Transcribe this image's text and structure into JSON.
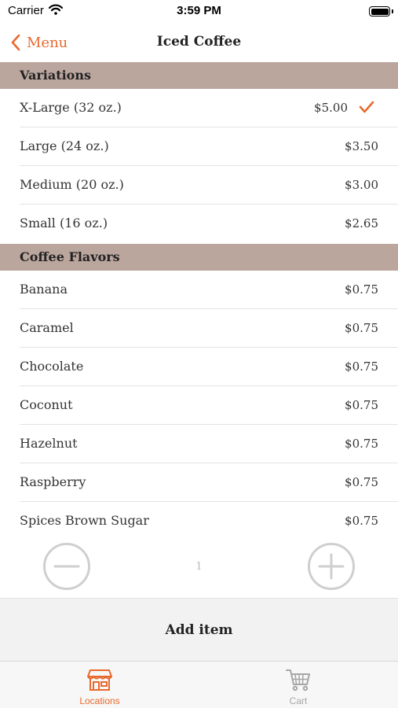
{
  "status_bar": {
    "carrier": "Carrier",
    "time": "3:59 PM"
  },
  "nav": {
    "back_label": "Menu",
    "title": "Iced Coffee"
  },
  "sections": [
    {
      "title": "Variations",
      "items": [
        {
          "label": "X-Large (32 oz.)",
          "price": "$5.00",
          "selected": true
        },
        {
          "label": "Large (24 oz.)",
          "price": "$3.50",
          "selected": false
        },
        {
          "label": "Medium (20 oz.)",
          "price": "$3.00",
          "selected": false
        },
        {
          "label": "Small (16 oz.)",
          "price": "$2.65",
          "selected": false
        }
      ]
    },
    {
      "title": "Coffee Flavors",
      "items": [
        {
          "label": "Banana",
          "price": "$0.75",
          "selected": false
        },
        {
          "label": "Caramel",
          "price": "$0.75",
          "selected": false
        },
        {
          "label": "Chocolate",
          "price": "$0.75",
          "selected": false
        },
        {
          "label": "Coconut",
          "price": "$0.75",
          "selected": false
        },
        {
          "label": "Hazelnut",
          "price": "$0.75",
          "selected": false
        },
        {
          "label": "Raspberry",
          "price": "$0.75",
          "selected": false
        },
        {
          "label": "Spices Brown Sugar",
          "price": "$0.75",
          "selected": false
        }
      ]
    }
  ],
  "stepper": {
    "quantity": "1",
    "minus_icon": "minus-circle-icon",
    "plus_icon": "plus-circle-icon"
  },
  "add_item": {
    "label": "Add item"
  },
  "tabs": [
    {
      "label": "Locations",
      "icon": "storefront-icon",
      "active": true
    },
    {
      "label": "Cart",
      "icon": "cart-icon",
      "active": false
    }
  ],
  "colors": {
    "accent": "#e8692f",
    "section_header_bg": "#bba69e",
    "inactive_tab": "#a6a6a6",
    "stepper_gray": "#cfcfcf"
  }
}
